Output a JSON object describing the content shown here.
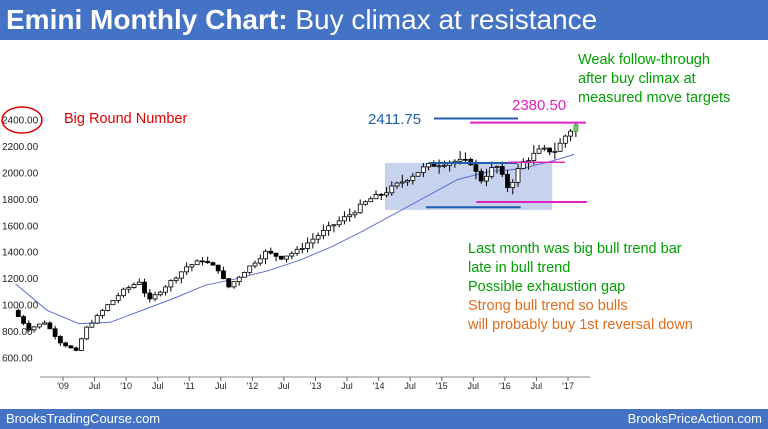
{
  "header": {
    "title_bold": "Emini Monthly Chart:",
    "title_rest": " Buy climax at resistance"
  },
  "footer": {
    "left": "BrooksTradingCourse.com",
    "right": "BrooksPriceAction.com"
  },
  "annotations": {
    "big_round_number": "Big Round Number",
    "level_2411": "2411.75",
    "level_2380": "2380.50",
    "weak_follow": [
      "Weak follow-through",
      "after buy climax at",
      "measured move targets"
    ],
    "last_month": [
      "Last month was big bull trend bar",
      "late in bull trend",
      "Possible exhaustion gap"
    ],
    "strong_bull": [
      "Strong bull trend so bulls",
      "will probably buy 1st reversal down"
    ]
  },
  "colors": {
    "header": "#4472c4",
    "green": "#00a000",
    "red": "#e00000",
    "orange": "#e06c1c",
    "blue": "#1f5fb0",
    "magenta": "#e020c0",
    "box": "#b4c3ea",
    "ma": "#5b6fd6"
  },
  "chart_data": {
    "type": "candlestick",
    "title": "Emini Monthly Chart",
    "ylim": [
      500,
      2500
    ],
    "y_ticks": [
      "600.00",
      "800.00",
      "1000.00",
      "1200.00",
      "1400.00",
      "1600.00",
      "1800.00",
      "2000.00",
      "2200.00",
      "2400.00"
    ],
    "x_ticks": [
      "'09",
      "Jul",
      "'10",
      "Jul",
      "'11",
      "Jul",
      "'12",
      "Jul",
      "'13",
      "Jul",
      "'14",
      "Jul",
      "'15",
      "Jul",
      "'16",
      "Jul",
      "'17"
    ],
    "levels": {
      "resistance_2411": 2411.75,
      "resistance_2380": 2380.5,
      "range_high": 2075,
      "range_low": 1740,
      "support_low": 1780
    },
    "close_path": [
      [
        2008.25,
        960
      ],
      [
        2008.5,
        820
      ],
      [
        2008.75,
        870
      ],
      [
        2009.0,
        720
      ],
      [
        2009.25,
        650
      ],
      [
        2009.4,
        820
      ],
      [
        2009.75,
        1000
      ],
      [
        2010.0,
        1110
      ],
      [
        2010.25,
        1180
      ],
      [
        2010.4,
        1030
      ],
      [
        2010.75,
        1180
      ],
      [
        2011.0,
        1290
      ],
      [
        2011.25,
        1340
      ],
      [
        2011.5,
        1270
      ],
      [
        2011.65,
        1130
      ],
      [
        2011.9,
        1250
      ],
      [
        2012.25,
        1400
      ],
      [
        2012.5,
        1360
      ],
      [
        2012.75,
        1410
      ],
      [
        2013.0,
        1500
      ],
      [
        2013.3,
        1600
      ],
      [
        2013.6,
        1690
      ],
      [
        2013.9,
        1800
      ],
      [
        2014.1,
        1840
      ],
      [
        2014.5,
        1960
      ],
      [
        2014.8,
        2050
      ],
      [
        2015.2,
        2090
      ],
      [
        2015.5,
        2080
      ],
      [
        2015.65,
        1940
      ],
      [
        2015.9,
        2060
      ],
      [
        2016.1,
        1880
      ],
      [
        2016.3,
        2070
      ],
      [
        2016.6,
        2170
      ],
      [
        2016.85,
        2170
      ],
      [
        2017.0,
        2280
      ],
      [
        2017.15,
        2360
      ]
    ],
    "moving_average": [
      [
        2008.25,
        1160
      ],
      [
        2008.75,
        960
      ],
      [
        2009.25,
        860
      ],
      [
        2009.75,
        870
      ],
      [
        2010.25,
        960
      ],
      [
        2010.75,
        1050
      ],
      [
        2011.25,
        1150
      ],
      [
        2011.75,
        1200
      ],
      [
        2012.25,
        1260
      ],
      [
        2012.75,
        1340
      ],
      [
        2013.25,
        1440
      ],
      [
        2013.75,
        1560
      ],
      [
        2014.25,
        1690
      ],
      [
        2014.75,
        1820
      ],
      [
        2015.25,
        1950
      ],
      [
        2015.75,
        2010
      ],
      [
        2016.25,
        2030
      ],
      [
        2016.75,
        2090
      ],
      [
        2017.1,
        2140
      ]
    ]
  }
}
